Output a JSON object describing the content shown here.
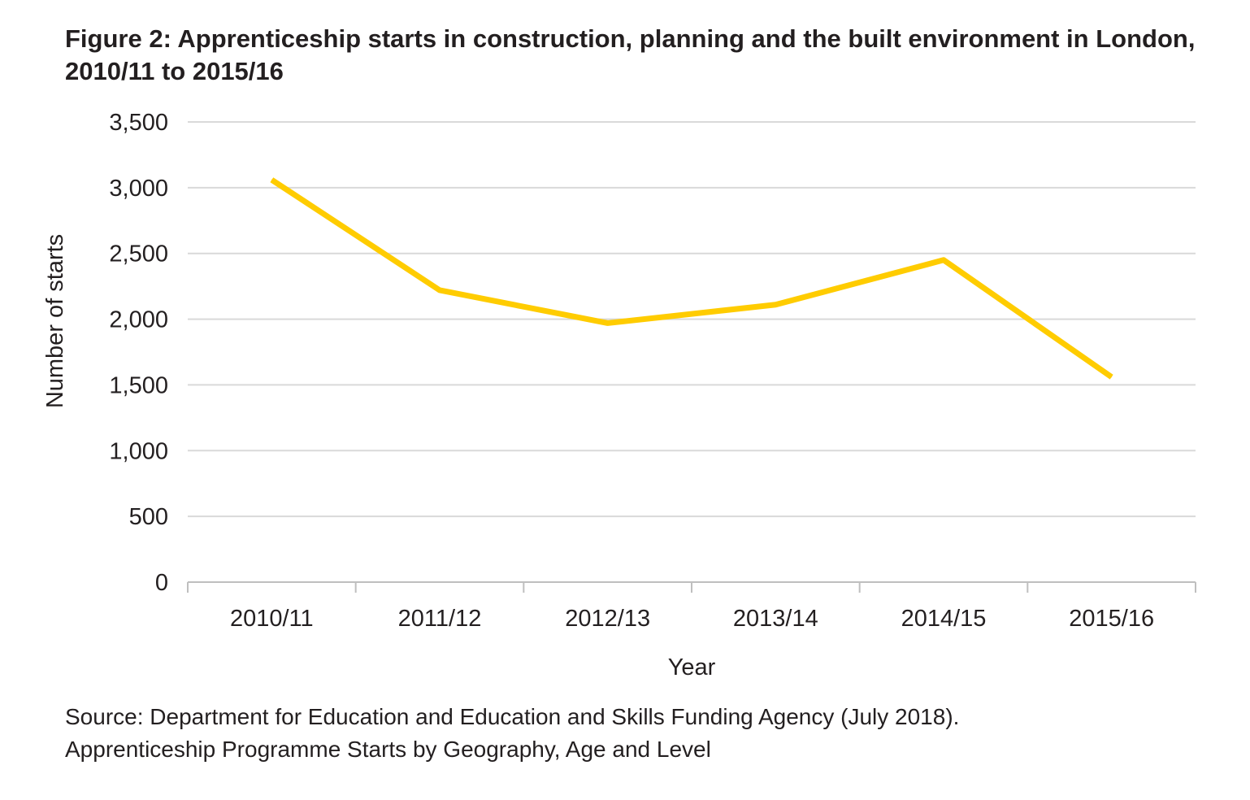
{
  "chart_data": {
    "type": "line",
    "title": "Figure 2: Apprenticeship starts in construction, planning and the built environment in London, 2010/11 to 2015/16",
    "xlabel": "Year",
    "ylabel": "Number of starts",
    "categories": [
      "2010/11",
      "2011/12",
      "2012/13",
      "2013/14",
      "2014/15",
      "2015/16"
    ],
    "series": [
      {
        "name": "Apprenticeship starts",
        "values": [
          3060,
          2220,
          1970,
          2110,
          2450,
          1560
        ],
        "color": "#ffcc00"
      }
    ],
    "ylim": [
      0,
      3500
    ],
    "yticks": [
      0,
      500,
      1000,
      1500,
      2000,
      2500,
      3000,
      3500
    ],
    "ytick_labels": [
      "0",
      "500",
      "1,000",
      "1,500",
      "2,000",
      "2,500",
      "3,000",
      "3,500"
    ],
    "grid": true,
    "gridline_color": "#d9d9d9"
  },
  "source": {
    "line1": "Source: Department for Education and Education and Skills Funding Agency (July 2018).",
    "line2": "Apprenticeship Programme Starts by Geography, Age and Level"
  }
}
